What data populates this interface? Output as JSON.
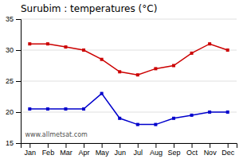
{
  "chart_data": {
    "type": "line",
    "title": "Surubim : temperatures (°C)",
    "categories": [
      "Jan",
      "Feb",
      "Mar",
      "Apr",
      "May",
      "Jun",
      "Jul",
      "Aug",
      "Sep",
      "Oct",
      "Nov",
      "Dec"
    ],
    "series": [
      {
        "color": "#cc0000",
        "marker": "square",
        "line_style": "solid",
        "values": [
          31.0,
          31.0,
          30.5,
          30.0,
          28.5,
          26.5,
          26.0,
          27.0,
          27.5,
          29.5,
          31.0,
          30.0
        ]
      },
      {
        "color": "#0000cc",
        "marker": "square",
        "line_style": "solid",
        "values": [
          20.5,
          20.5,
          20.5,
          20.5,
          23.0,
          19.0,
          18.0,
          18.0,
          19.0,
          19.5,
          20.0,
          20.0
        ]
      }
    ],
    "ylim": [
      15,
      35
    ],
    "yticks": [
      15,
      20,
      25,
      30,
      35
    ],
    "grid": true,
    "annotations": [
      "www.allmetsat.com"
    ]
  }
}
